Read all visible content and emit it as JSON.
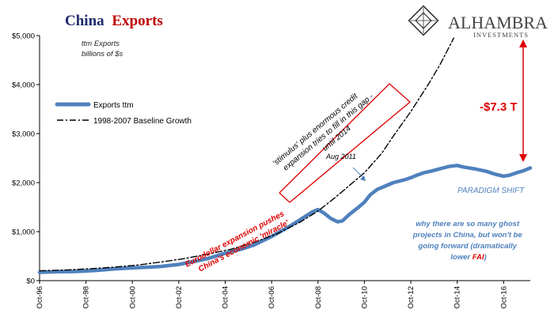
{
  "title": {
    "part1": "China",
    "part2": "Exports"
  },
  "logo": {
    "name": "ALHAMBRA",
    "sub": "INVESTMENTS",
    "icon": "alhambra-diamond-icon"
  },
  "units_note": {
    "line1": "ttm Exports",
    "line2": "billions of $s"
  },
  "colors": {
    "title_navy": "#1f2a6b",
    "title_red": "#c00000",
    "series_blue": "#4f81bd",
    "annotation_red": "#e00000",
    "annotation_blue": "#4f81bd"
  },
  "annotations": {
    "gap_value": "-$7.3 T",
    "stimulus_line1": "'stimulus' plus enormous credit",
    "stimulus_line2": "expansion tries to fill in this gap -",
    "stimulus_line3": "until 2014",
    "aug2011": "Aug 2011",
    "paradigm_shift": "PARADIGM SHIFT",
    "ghost_line1": "why there are so many ghost",
    "ghost_line2": "projects in China, but won't be",
    "ghost_line3": "going forward (dramatically",
    "ghost_line4_pre": "lower ",
    "ghost_line4_fai": "FAI",
    "ghost_line4_post": ")",
    "eurodollar_line1": "Eurodollar  expansion pushes",
    "eurodollar_line2": "China's economic 'miracle'"
  },
  "chart_data": {
    "type": "line",
    "y_tick_labels": [
      "$0",
      "$1,000",
      "$2,000",
      "$3,000",
      "$4,000",
      "$5,000"
    ],
    "y_ticks": [
      0,
      1000,
      2000,
      3000,
      4000,
      5000
    ],
    "ylim": [
      0,
      5000
    ],
    "x_tick_labels": [
      "Oct-96",
      "Oct-98",
      "Oct-00",
      "Oct-02",
      "Oct-04",
      "Oct-06",
      "Oct-08",
      "Oct-10",
      "Oct-12",
      "Oct-14",
      "Oct-16"
    ],
    "x_ticks": [
      1996.75,
      1998.75,
      2000.75,
      2002.75,
      2004.75,
      2006.75,
      2008.75,
      2010.75,
      2012.75,
      2014.75,
      2016.75
    ],
    "xlim": [
      1996.75,
      2017.9
    ],
    "legend_position": "left",
    "series": [
      {
        "name": "Exports ttm",
        "style": "solid",
        "color": "#4f81bd",
        "x": [
          1996.75,
          1997.5,
          1998.25,
          1998.75,
          1999.5,
          2000.0,
          2000.75,
          2001.5,
          2002.0,
          2002.75,
          2003.5,
          2004.0,
          2004.75,
          2005.5,
          2006.0,
          2006.75,
          2007.5,
          2008.0,
          2008.5,
          2008.75,
          2009.0,
          2009.3,
          2009.6,
          2009.8,
          2010.1,
          2010.5,
          2010.75,
          2011.0,
          2011.3,
          2011.6,
          2012.0,
          2012.5,
          2012.75,
          2013.0,
          2013.3,
          2013.6,
          2014.0,
          2014.4,
          2014.75,
          2015.0,
          2015.5,
          2016.0,
          2016.4,
          2016.75,
          2017.0,
          2017.3,
          2017.6,
          2017.9
        ],
        "values": [
          170,
          180,
          185,
          195,
          220,
          240,
          260,
          275,
          290,
          330,
          400,
          450,
          560,
          650,
          730,
          900,
          1100,
          1250,
          1400,
          1450,
          1380,
          1270,
          1200,
          1220,
          1350,
          1500,
          1600,
          1750,
          1860,
          1920,
          2000,
          2060,
          2100,
          2150,
          2200,
          2230,
          2280,
          2330,
          2350,
          2320,
          2280,
          2230,
          2170,
          2130,
          2150,
          2200,
          2240,
          2300
        ]
      },
      {
        "name": "1998-2007 Baseline Growth",
        "style": "dash-dot",
        "color": "#000000",
        "x": [
          1996.75,
          1998.0,
          1999.0,
          2000.0,
          2001.0,
          2002.0,
          2003.0,
          2004.0,
          2005.0,
          2006.0,
          2007.0,
          2008.0,
          2008.75,
          2009.5,
          2010.0,
          2010.75,
          2011.5,
          2012.0,
          2012.75,
          2013.5,
          2014.0,
          2014.6
        ],
        "values": [
          200,
          220,
          245,
          275,
          320,
          380,
          450,
          540,
          640,
          780,
          960,
          1200,
          1420,
          1700,
          1900,
          2200,
          2600,
          2950,
          3450,
          4000,
          4400,
          4950
        ]
      }
    ]
  }
}
